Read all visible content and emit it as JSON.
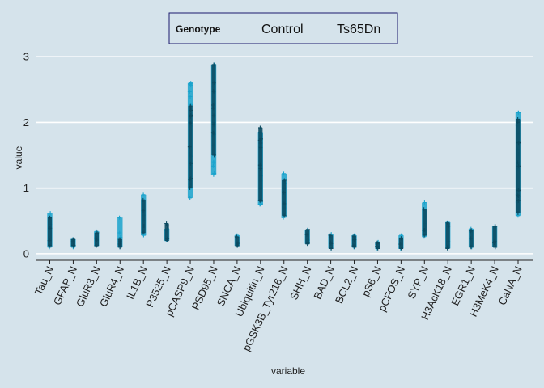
{
  "chart_data": {
    "type": "scatter",
    "xlabel": "variable",
    "ylabel": "value",
    "ylim": [
      -0.1,
      3.15
    ],
    "yticks": [
      0,
      1,
      2,
      3
    ],
    "grid": "horizontal",
    "legend_placement": "top",
    "legend": {
      "title": "Genotype",
      "entries": [
        {
          "label": "Control",
          "color": "#1aa3cc",
          "marker": "+"
        },
        {
          "label": "Ts65Dn",
          "color": "#0b4a60",
          "marker": "+"
        }
      ]
    },
    "categories": [
      "Tau_N",
      "GFAP_N",
      "GluR3_N",
      "GluR4_N",
      "IL1B_N",
      "P3525_N",
      "pCASP9_N",
      "PSD95_N",
      "SNCA_N",
      "Ubiquitin_N",
      "pGSK3B_Tyr216_N",
      "SHH_N",
      "BAD_N",
      "BCL2_N",
      "pS6_N",
      "pCFOS_N",
      "SYP_N",
      "H3AcK18_N",
      "EGR1_N",
      "H3MeK4_N",
      "CaNA_N"
    ],
    "series": [
      {
        "name": "Control",
        "ranges": [
          [
            0.1,
            0.62
          ],
          [
            0.1,
            0.22
          ],
          [
            0.12,
            0.34
          ],
          [
            0.1,
            0.55
          ],
          [
            0.28,
            0.9
          ],
          [
            0.2,
            0.38
          ],
          [
            0.85,
            2.6
          ],
          [
            1.2,
            2.88
          ],
          [
            0.12,
            0.28
          ],
          [
            0.75,
            1.85
          ],
          [
            0.55,
            1.22
          ],
          [
            0.15,
            0.36
          ],
          [
            0.08,
            0.3
          ],
          [
            0.1,
            0.28
          ],
          [
            0.08,
            0.18
          ],
          [
            0.08,
            0.28
          ],
          [
            0.26,
            0.78
          ],
          [
            0.08,
            0.48
          ],
          [
            0.1,
            0.38
          ],
          [
            0.1,
            0.42
          ],
          [
            0.58,
            2.15
          ]
        ]
      },
      {
        "name": "Ts65Dn",
        "ranges": [
          [
            0.12,
            0.55
          ],
          [
            0.12,
            0.22
          ],
          [
            0.12,
            0.32
          ],
          [
            0.1,
            0.22
          ],
          [
            0.32,
            0.82
          ],
          [
            0.2,
            0.46
          ],
          [
            1.0,
            2.25
          ],
          [
            1.5,
            2.88
          ],
          [
            0.12,
            0.26
          ],
          [
            0.8,
            1.92
          ],
          [
            0.58,
            1.12
          ],
          [
            0.15,
            0.37
          ],
          [
            0.08,
            0.28
          ],
          [
            0.1,
            0.27
          ],
          [
            0.08,
            0.17
          ],
          [
            0.08,
            0.24
          ],
          [
            0.28,
            0.68
          ],
          [
            0.08,
            0.47
          ],
          [
            0.1,
            0.36
          ],
          [
            0.1,
            0.42
          ],
          [
            0.62,
            2.05
          ]
        ]
      }
    ]
  }
}
